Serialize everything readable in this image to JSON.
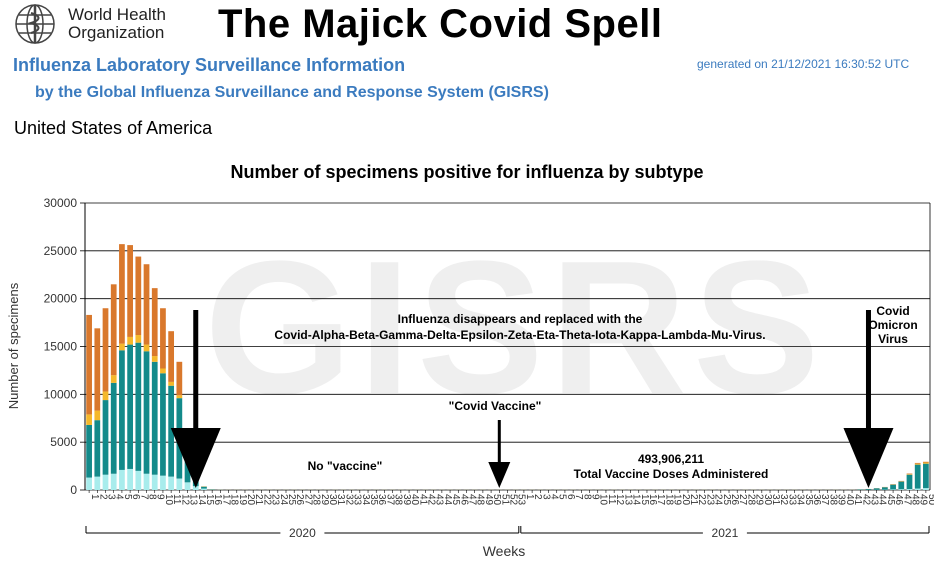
{
  "header": {
    "org_name": "World Health\nOrganization",
    "title": "The Majick Covid Spell",
    "subtitle1": "Influenza Laboratory Surveillance Information",
    "generated": "generated on 21/12/2021 16:30:52 UTC",
    "subtitle2": "by the Global Influenza Surveillance and Response System (GISRS)",
    "country": "United States of America"
  },
  "colors": {
    "series_a": "#a8ecec",
    "series_b": "#138a8a",
    "series_c": "#f5b82a",
    "series_d": "#d9782c",
    "grid": "#000000",
    "watermark": "#efefef"
  },
  "chart_data": {
    "type": "bar",
    "stacked": true,
    "title": "Number of specimens positive for influenza by subtype",
    "xlabel": "Weeks",
    "ylabel": "Number of specimens",
    "ylim": [
      0,
      30000
    ],
    "yticks": [
      0,
      5000,
      10000,
      15000,
      20000,
      25000,
      30000
    ],
    "grid": true,
    "watermark": "GISRS",
    "year_labels": [
      {
        "label": "2020",
        "from": "2020-W1",
        "to": "2020-W53"
      },
      {
        "label": "2021",
        "from": "2021-W1",
        "to": "2021-W50"
      }
    ],
    "categories": [
      "2020-W1",
      "2020-W2",
      "2020-W3",
      "2020-W4",
      "2020-W5",
      "2020-W6",
      "2020-W7",
      "2020-W8",
      "2020-W9",
      "2020-W10",
      "2020-W11",
      "2020-W12",
      "2020-W13",
      "2020-W14",
      "2020-W15",
      "2020-W16",
      "2020-W17",
      "2020-W18",
      "2020-W19",
      "2020-W20",
      "2020-W21",
      "2020-W22",
      "2020-W23",
      "2020-W24",
      "2020-W25",
      "2020-W26",
      "2020-W27",
      "2020-W28",
      "2020-W29",
      "2020-W30",
      "2020-W31",
      "2020-W32",
      "2020-W33",
      "2020-W34",
      "2020-W35",
      "2020-W36",
      "2020-W37",
      "2020-W38",
      "2020-W39",
      "2020-W40",
      "2020-W41",
      "2020-W42",
      "2020-W43",
      "2020-W44",
      "2020-W45",
      "2020-W46",
      "2020-W47",
      "2020-W48",
      "2020-W49",
      "2020-W50",
      "2020-W51",
      "2020-W52",
      "2020-W53",
      "2021-W1",
      "2021-W2",
      "2021-W3",
      "2021-W4",
      "2021-W5",
      "2021-W6",
      "2021-W7",
      "2021-W8",
      "2021-W9",
      "2021-W10",
      "2021-W11",
      "2021-W12",
      "2021-W13",
      "2021-W14",
      "2021-W15",
      "2021-W16",
      "2021-W17",
      "2021-W18",
      "2021-W19",
      "2021-W20",
      "2021-W21",
      "2021-W22",
      "2021-W23",
      "2021-W24",
      "2021-W25",
      "2021-W26",
      "2021-W27",
      "2021-W28",
      "2021-W29",
      "2021-W30",
      "2021-W31",
      "2021-W32",
      "2021-W33",
      "2021-W34",
      "2021-W35",
      "2021-W36",
      "2021-W37",
      "2021-W38",
      "2021-W39",
      "2021-W40",
      "2021-W41",
      "2021-W42",
      "2021-W43",
      "2021-W44",
      "2021-W45",
      "2021-W46",
      "2021-W47",
      "2021-W48",
      "2021-W49",
      "2021-W50"
    ],
    "tick_labels": [
      "1",
      "2",
      "3",
      "4",
      "5",
      "6",
      "7",
      "8",
      "9",
      "10",
      "11",
      "12",
      "13",
      "14",
      "15",
      "16",
      "17",
      "18",
      "19",
      "20",
      "21",
      "22",
      "23",
      "24",
      "25",
      "26",
      "27",
      "28",
      "29",
      "30",
      "31",
      "32",
      "33",
      "34",
      "35",
      "36",
      "37",
      "38",
      "39",
      "40",
      "41",
      "42",
      "43",
      "44",
      "45",
      "46",
      "47",
      "48",
      "49",
      "50",
      "51",
      "52",
      "53",
      "1",
      "2",
      "3",
      "4",
      "5",
      "6",
      "7",
      "8",
      "9",
      "10",
      "11",
      "12",
      "13",
      "14",
      "15",
      "16",
      "17",
      "18",
      "19",
      "20",
      "21",
      "22",
      "23",
      "24",
      "25",
      "26",
      "27",
      "28",
      "29",
      "30",
      "31",
      "32",
      "33",
      "34",
      "35",
      "36",
      "37",
      "38",
      "39",
      "40",
      "41",
      "42",
      "43",
      "44",
      "45",
      "46",
      "47",
      "48",
      "49",
      "50"
    ],
    "series": [
      {
        "color": "#a8ecec",
        "values": [
          1300,
          1400,
          1600,
          1700,
          2100,
          2200,
          2000,
          1700,
          1600,
          1500,
          1400,
          1200,
          800,
          400,
          150,
          30,
          10,
          5,
          5,
          5,
          5,
          5,
          5,
          5,
          5,
          5,
          5,
          5,
          5,
          5,
          5,
          5,
          5,
          5,
          5,
          5,
          5,
          5,
          5,
          5,
          5,
          5,
          5,
          5,
          5,
          5,
          5,
          5,
          5,
          5,
          5,
          5,
          5,
          5,
          5,
          5,
          5,
          5,
          5,
          5,
          5,
          5,
          5,
          5,
          5,
          5,
          5,
          5,
          5,
          5,
          5,
          5,
          5,
          5,
          5,
          5,
          5,
          5,
          5,
          5,
          5,
          5,
          5,
          5,
          5,
          5,
          5,
          5,
          5,
          5,
          5,
          5,
          5,
          5,
          10,
          20,
          30,
          40,
          60,
          80,
          100,
          150,
          200
        ]
      },
      {
        "color": "#138a8a",
        "values": [
          5500,
          5900,
          7800,
          9500,
          12500,
          13000,
          13400,
          12800,
          11800,
          10700,
          9500,
          8400,
          3700,
          700,
          200,
          40,
          10,
          5,
          5,
          5,
          5,
          5,
          5,
          5,
          5,
          5,
          5,
          5,
          5,
          5,
          5,
          5,
          5,
          5,
          5,
          5,
          5,
          5,
          5,
          5,
          5,
          5,
          5,
          5,
          5,
          5,
          5,
          5,
          5,
          5,
          5,
          5,
          5,
          5,
          5,
          5,
          5,
          5,
          5,
          5,
          5,
          5,
          5,
          5,
          5,
          5,
          5,
          5,
          5,
          5,
          5,
          5,
          5,
          5,
          5,
          5,
          5,
          5,
          5,
          5,
          5,
          5,
          5,
          5,
          5,
          5,
          5,
          5,
          5,
          5,
          5,
          5,
          5,
          5,
          50,
          80,
          150,
          250,
          500,
          800,
          1500,
          2500,
          2550
        ]
      },
      {
        "color": "#f5b82a",
        "values": [
          1100,
          1000,
          900,
          800,
          700,
          800,
          800,
          700,
          600,
          500,
          400,
          300,
          100,
          50,
          20,
          10,
          5,
          5,
          5,
          5,
          5,
          5,
          5,
          5,
          5,
          5,
          5,
          5,
          5,
          5,
          5,
          5,
          5,
          5,
          5,
          5,
          5,
          5,
          5,
          5,
          5,
          5,
          5,
          5,
          5,
          5,
          5,
          5,
          5,
          5,
          5,
          5,
          5,
          5,
          5,
          5,
          5,
          5,
          5,
          5,
          5,
          5,
          5,
          5,
          5,
          5,
          5,
          5,
          5,
          5,
          5,
          5,
          5,
          5,
          5,
          5,
          5,
          5,
          5,
          5,
          5,
          5,
          5,
          5,
          5,
          5,
          5,
          5,
          5,
          5,
          5,
          5,
          5,
          5,
          5,
          5,
          5,
          10,
          20,
          30,
          60,
          100,
          120
        ]
      },
      {
        "color": "#d9782c",
        "values": [
          10400,
          8600,
          8700,
          9500,
          10400,
          9600,
          8200,
          8400,
          7100,
          6300,
          5300,
          3500,
          400,
          50,
          10,
          5,
          5,
          5,
          5,
          5,
          5,
          5,
          5,
          5,
          5,
          5,
          5,
          5,
          5,
          5,
          5,
          5,
          5,
          5,
          5,
          5,
          5,
          5,
          5,
          5,
          5,
          5,
          5,
          5,
          5,
          5,
          5,
          5,
          5,
          5,
          5,
          5,
          5,
          5,
          5,
          5,
          5,
          5,
          5,
          5,
          5,
          5,
          5,
          5,
          5,
          5,
          5,
          5,
          5,
          5,
          5,
          5,
          5,
          5,
          5,
          5,
          5,
          5,
          5,
          5,
          5,
          5,
          5,
          5,
          5,
          5,
          5,
          5,
          5,
          5,
          5,
          5,
          5,
          5,
          5,
          5,
          10,
          20,
          30,
          40,
          60,
          80,
          80
        ]
      }
    ],
    "annotations": [
      {
        "key": "a1",
        "lines": [
          "Influenza disappears and replaced with the",
          "Covid-Alpha-Beta-Gamma-Delta-Epsilon-Zeta-Eta-Theta-Iota-Kappa-Lambda-Mu-Virus."
        ]
      },
      {
        "key": "a2",
        "lines": [
          "Covid",
          "Omicron",
          "Virus"
        ]
      },
      {
        "key": "a3",
        "lines": [
          "\"Covid Vaccine\""
        ]
      },
      {
        "key": "a4",
        "lines": [
          "No \"vaccine\""
        ]
      },
      {
        "key": "a5",
        "lines": [
          "493,906,211",
          "Total Vaccine Doses Administered"
        ]
      }
    ],
    "arrows": [
      {
        "key": "arrow1",
        "at": "2020-W14",
        "size": "large"
      },
      {
        "key": "arrow2",
        "at": "2020-W51",
        "size": "small"
      },
      {
        "key": "arrow3",
        "at": "2021-W43",
        "size": "large"
      }
    ]
  }
}
